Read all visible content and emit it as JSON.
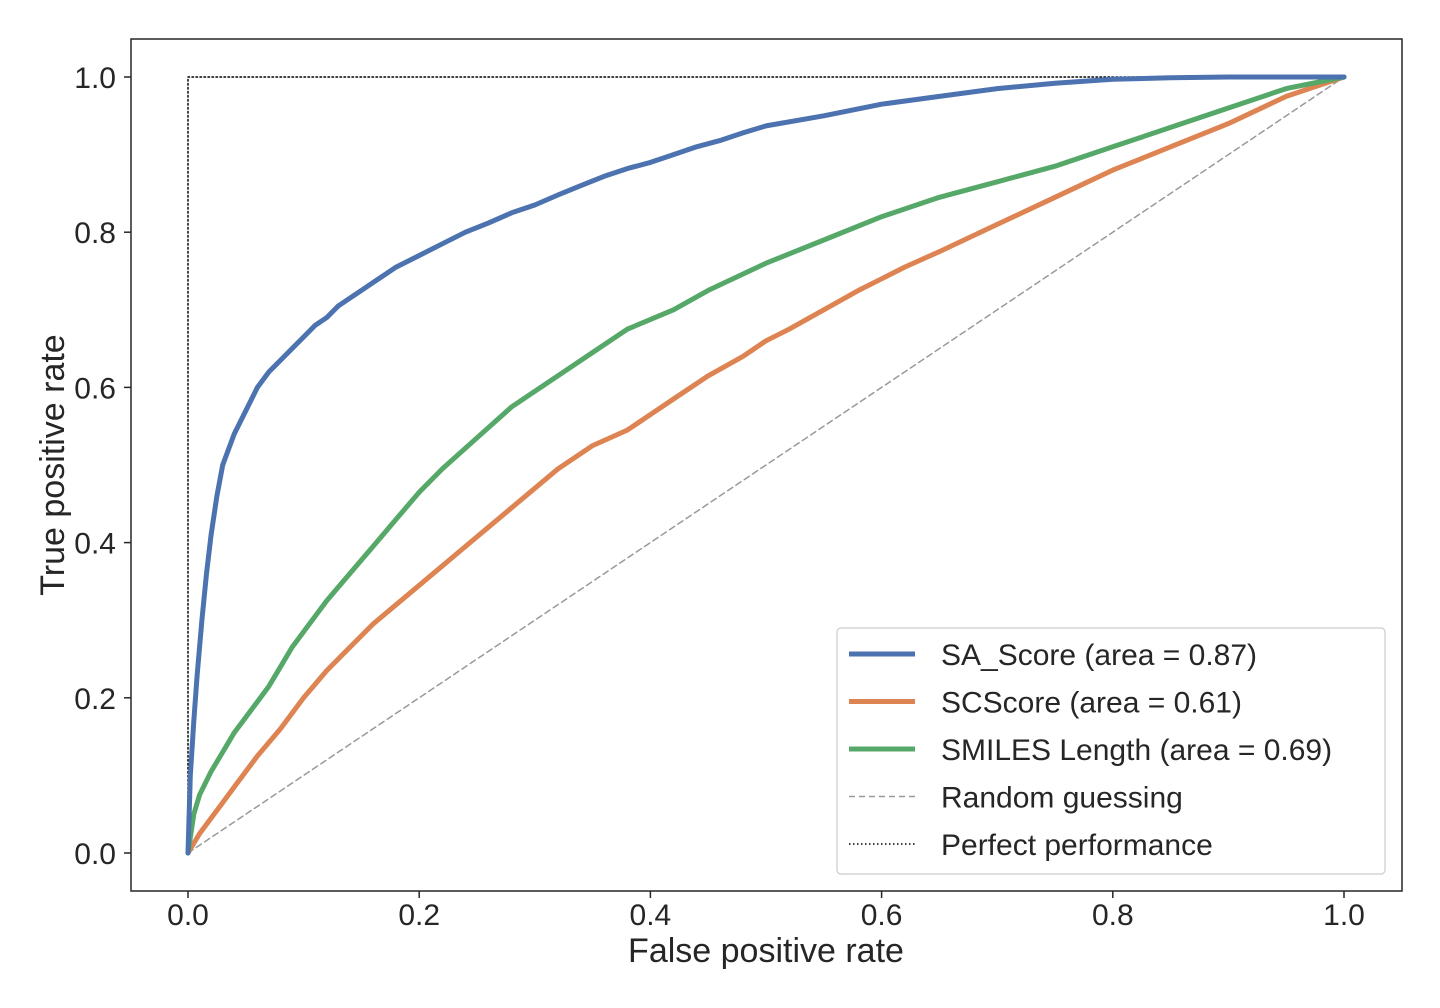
{
  "chart_data": {
    "type": "line",
    "title": "",
    "xlabel": "False positive rate",
    "ylabel": "True positive rate",
    "xlim": [
      0.0,
      1.0
    ],
    "ylim": [
      0.0,
      1.0
    ],
    "xticks": [
      "0.0",
      "0.2",
      "0.4",
      "0.6",
      "0.8",
      "1.0"
    ],
    "yticks": [
      "0.0",
      "0.2",
      "0.4",
      "0.6",
      "0.8",
      "1.0"
    ],
    "grid": false,
    "legend_position": "lower-right",
    "series": [
      {
        "name": "SA_Score (area = 0.87)",
        "color": "#4c72b0",
        "style": "solid",
        "x": [
          0,
          0.002,
          0.005,
          0.008,
          0.012,
          0.016,
          0.02,
          0.025,
          0.03,
          0.04,
          0.05,
          0.06,
          0.07,
          0.08,
          0.09,
          0.1,
          0.11,
          0.12,
          0.13,
          0.14,
          0.15,
          0.16,
          0.18,
          0.2,
          0.22,
          0.24,
          0.26,
          0.28,
          0.3,
          0.32,
          0.34,
          0.36,
          0.38,
          0.4,
          0.42,
          0.44,
          0.46,
          0.48,
          0.5,
          0.55,
          0.6,
          0.65,
          0.7,
          0.75,
          0.8,
          0.85,
          0.9,
          0.95,
          1.0
        ],
        "y": [
          0,
          0.1,
          0.17,
          0.23,
          0.3,
          0.36,
          0.41,
          0.46,
          0.5,
          0.54,
          0.57,
          0.6,
          0.62,
          0.635,
          0.65,
          0.665,
          0.68,
          0.69,
          0.705,
          0.715,
          0.725,
          0.735,
          0.755,
          0.77,
          0.785,
          0.8,
          0.812,
          0.825,
          0.835,
          0.848,
          0.86,
          0.872,
          0.882,
          0.89,
          0.9,
          0.91,
          0.918,
          0.928,
          0.937,
          0.95,
          0.965,
          0.975,
          0.985,
          0.992,
          0.997,
          0.999,
          1.0,
          1.0,
          1.0
        ]
      },
      {
        "name": "SCScore (area = 0.61)",
        "color": "#dd8452",
        "style": "solid",
        "x": [
          0,
          0.01,
          0.02,
          0.03,
          0.04,
          0.05,
          0.06,
          0.08,
          0.1,
          0.12,
          0.14,
          0.16,
          0.18,
          0.2,
          0.22,
          0.24,
          0.26,
          0.28,
          0.3,
          0.32,
          0.35,
          0.38,
          0.4,
          0.42,
          0.45,
          0.48,
          0.5,
          0.52,
          0.55,
          0.58,
          0.6,
          0.62,
          0.65,
          0.7,
          0.75,
          0.8,
          0.85,
          0.9,
          0.95,
          1.0
        ],
        "y": [
          0,
          0.025,
          0.045,
          0.065,
          0.085,
          0.105,
          0.125,
          0.16,
          0.2,
          0.235,
          0.265,
          0.295,
          0.32,
          0.345,
          0.37,
          0.395,
          0.42,
          0.445,
          0.47,
          0.495,
          0.525,
          0.545,
          0.565,
          0.585,
          0.615,
          0.64,
          0.66,
          0.675,
          0.7,
          0.725,
          0.74,
          0.755,
          0.775,
          0.81,
          0.845,
          0.88,
          0.91,
          0.94,
          0.975,
          1.0
        ]
      },
      {
        "name": "SMILES Length (area = 0.69)",
        "color": "#55a868",
        "style": "solid",
        "x": [
          0,
          0.005,
          0.01,
          0.02,
          0.03,
          0.04,
          0.05,
          0.06,
          0.07,
          0.08,
          0.09,
          0.1,
          0.12,
          0.14,
          0.16,
          0.18,
          0.2,
          0.22,
          0.25,
          0.28,
          0.32,
          0.35,
          0.38,
          0.42,
          0.45,
          0.5,
          0.55,
          0.6,
          0.65,
          0.7,
          0.75,
          0.8,
          0.85,
          0.9,
          0.95,
          1.0
        ],
        "y": [
          0,
          0.05,
          0.075,
          0.105,
          0.13,
          0.155,
          0.175,
          0.195,
          0.215,
          0.24,
          0.265,
          0.285,
          0.325,
          0.36,
          0.395,
          0.43,
          0.465,
          0.495,
          0.535,
          0.575,
          0.615,
          0.645,
          0.675,
          0.7,
          0.725,
          0.76,
          0.79,
          0.82,
          0.845,
          0.865,
          0.885,
          0.91,
          0.935,
          0.96,
          0.985,
          1.0
        ]
      },
      {
        "name": "Random guessing",
        "color": "#999999",
        "style": "dashed",
        "x": [
          0,
          1
        ],
        "y": [
          0,
          1
        ]
      },
      {
        "name": "Perfect performance",
        "color": "#000000",
        "style": "dotted",
        "x": [
          0,
          0,
          1
        ],
        "y": [
          0,
          1,
          1
        ]
      }
    ]
  }
}
